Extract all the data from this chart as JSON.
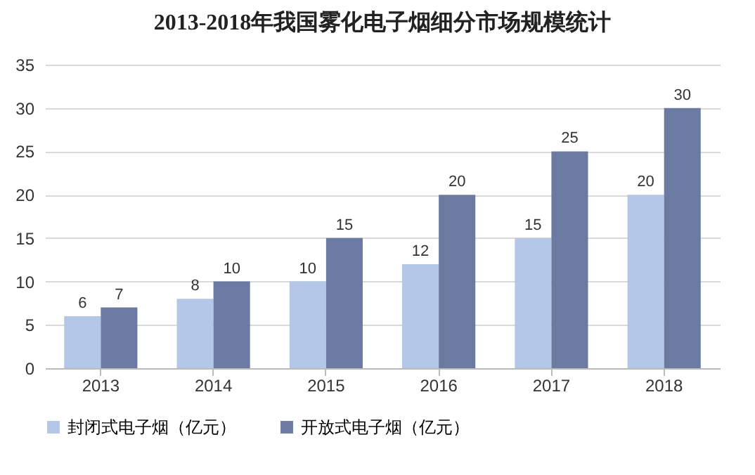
{
  "chart_data": {
    "type": "bar",
    "title": "2013-2018年我国雾化电子烟细分市场规模统计",
    "categories": [
      "2013",
      "2014",
      "2015",
      "2016",
      "2017",
      "2018"
    ],
    "series": [
      {
        "name": "封闭式电子烟（亿元）",
        "color": "#b4c7e7",
        "values": [
          6,
          8,
          10,
          12,
          15,
          20
        ]
      },
      {
        "name": "开放式电子烟（亿元）",
        "color": "#6b7aa1",
        "values": [
          7,
          10,
          15,
          20,
          25,
          30
        ]
      }
    ],
    "ylim": [
      0,
      35
    ],
    "yticks": [
      0,
      5,
      10,
      15,
      20,
      25,
      30,
      35
    ],
    "grid": "y",
    "legend": "bottom",
    "data_labels": true
  }
}
